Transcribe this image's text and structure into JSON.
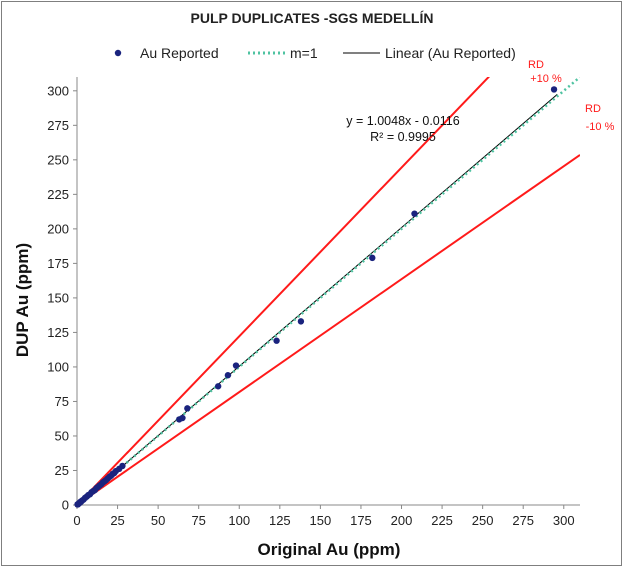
{
  "chart_data": {
    "type": "scatter",
    "title": "PULP DUPLICATES -SGS MEDELLÍN",
    "xlabel": "Original Au (ppm)",
    "ylabel": "DUP  Au (ppm)",
    "xlim": [
      0,
      310
    ],
    "ylim": [
      0,
      310
    ],
    "xticks": [
      "0",
      "25",
      "50",
      "75",
      "100",
      "125",
      "150",
      "175",
      "200",
      "225",
      "250",
      "275",
      "300"
    ],
    "yticks": [
      "0",
      "25",
      "50",
      "75",
      "100",
      "125",
      "150",
      "175",
      "200",
      "225",
      "250",
      "275",
      "300"
    ],
    "grid": false,
    "legend_position": "top",
    "legend": [
      "Au Reported",
      "m=1",
      "Linear (Au Reported)"
    ],
    "series": [
      {
        "name": "Au Reported",
        "color": "#1a237e",
        "points": [
          [
            0.3,
            0.4
          ],
          [
            0.6,
            0.5
          ],
          [
            1.0,
            1.1
          ],
          [
            1.5,
            1.4
          ],
          [
            2.0,
            2.2
          ],
          [
            2.5,
            2.4
          ],
          [
            3.0,
            3.1
          ],
          [
            4.0,
            3.9
          ],
          [
            5.0,
            5.2
          ],
          [
            6.0,
            6.1
          ],
          [
            7.0,
            7.2
          ],
          [
            8.0,
            7.8
          ],
          [
            9.0,
            9.3
          ],
          [
            10.0,
            10.1
          ],
          [
            11.0,
            10.8
          ],
          [
            12.0,
            12.3
          ],
          [
            13.0,
            13.1
          ],
          [
            14.0,
            14.2
          ],
          [
            15.0,
            15.0
          ],
          [
            16.0,
            16.4
          ],
          [
            17.0,
            17.2
          ],
          [
            18.0,
            18.1
          ],
          [
            19.0,
            19.3
          ],
          [
            20.0,
            20.4
          ],
          [
            21.0,
            21.2
          ],
          [
            22.0,
            22.5
          ],
          [
            23.0,
            23.2
          ],
          [
            24.0,
            24.6
          ],
          [
            26.0,
            26.2
          ],
          [
            28.0,
            28.3
          ],
          [
            63,
            62
          ],
          [
            65,
            63
          ],
          [
            68,
            70
          ],
          [
            87,
            86
          ],
          [
            93,
            94
          ],
          [
            98,
            101
          ],
          [
            123,
            119
          ],
          [
            138,
            133
          ],
          [
            182,
            179
          ],
          [
            208,
            211
          ],
          [
            294,
            301
          ]
        ]
      },
      {
        "name": "m=1",
        "color": "#4fc3a1"
      },
      {
        "name": "Linear (Au Reported)",
        "color": "#000000"
      }
    ],
    "reference_lines": [
      {
        "label_line1": "RD",
        "label_line2": "+10 %",
        "slope": 1.222,
        "color": "#ff1a1a"
      },
      {
        "label_line1": "RD",
        "label_line2": "-10 %",
        "slope": 0.818,
        "color": "#ff1a1a"
      }
    ],
    "regression": {
      "slope": 1.0048,
      "intercept": -0.0116,
      "equation": "y = 1.0048x - 0.0116",
      "r_squared": "R² = 0.9995"
    }
  }
}
